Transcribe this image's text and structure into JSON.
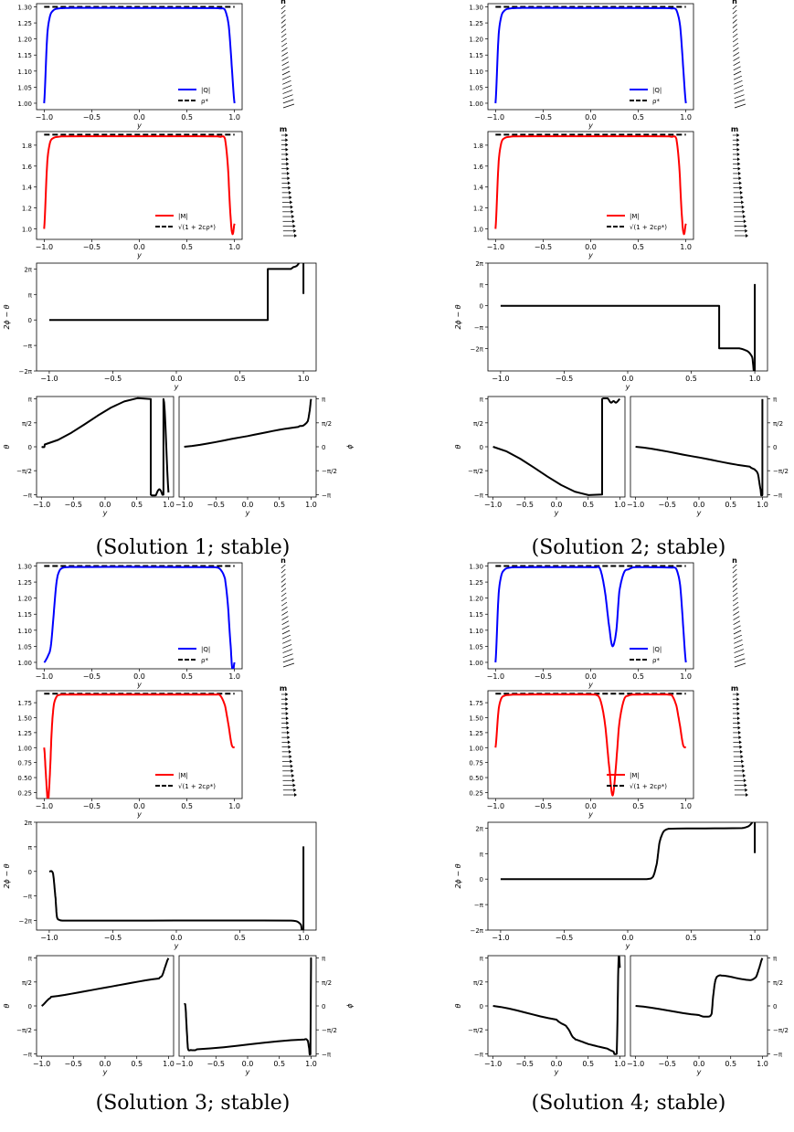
{
  "figure": {
    "captions": [
      "(Solution 1; stable)",
      "(Solution 2; stable)",
      "(Solution 3; stable)",
      "(Solution 4; stable)"
    ]
  },
  "labels": {
    "xlabel": "y",
    "ylabel_diff": "2ϕ − θ",
    "ylabel_theta": "θ",
    "ylabel_phi": "ϕ",
    "n_label": "n",
    "m_label": "m",
    "legend_Q": "|Q|",
    "legend_rho": "ρ*",
    "legend_M": "|M|",
    "legend_sqrt": "√(1 + 2cρ*)"
  },
  "colors": {
    "Q": "#0000ff",
    "M": "#ff0000",
    "ref": "#000000",
    "curve": "#000000"
  },
  "chart_data": [
    {
      "title": "(Solution 1; stable)",
      "type": "line",
      "Q": {
        "ylim": [
          0.98,
          1.31
        ],
        "yticks": [
          "1.00",
          "1.05",
          "1.10",
          "1.15",
          "1.20",
          "1.25",
          "1.30"
        ],
        "rho_star": 1.3,
        "x": [
          -1.0,
          -0.97,
          -0.94,
          -0.9,
          -0.85,
          -0.8,
          -0.7,
          0.8,
          0.85,
          0.9,
          0.94,
          0.97,
          1.0
        ],
        "y": [
          1.0,
          1.2,
          1.27,
          1.29,
          1.295,
          1.296,
          1.297,
          1.296,
          1.295,
          1.29,
          1.24,
          1.12,
          1.0
        ]
      },
      "M": {
        "ylim": [
          0.9,
          1.93
        ],
        "yticks": [
          "1.0",
          "1.2",
          "1.4",
          "1.6",
          "1.8"
        ],
        "ref": 1.9,
        "x": [
          -1.0,
          -0.97,
          -0.94,
          -0.9,
          -0.85,
          -0.8,
          0.8,
          0.85,
          0.9,
          0.93,
          0.96,
          0.98,
          1.0
        ],
        "y": [
          1.0,
          1.6,
          1.82,
          1.87,
          1.88,
          1.885,
          1.885,
          1.88,
          1.86,
          1.6,
          1.1,
          0.95,
          1.05
        ]
      },
      "diff": {
        "ylim": [
          -6.28,
          7.0
        ],
        "yticks": [
          "−2π",
          "−π",
          "0",
          "π",
          "2π"
        ],
        "x": [
          -1.0,
          0.72,
          0.72,
          0.9,
          0.92,
          0.95,
          0.98,
          1.0,
          1.0
        ],
        "y": [
          0,
          0,
          6.28,
          6.28,
          6.5,
          6.7,
          7.4,
          8.2,
          3.2
        ]
      },
      "theta": {
        "x": [
          -1.0,
          -0.95,
          0.72,
          0.72,
          0.85,
          0.88,
          0.9,
          0.92,
          0.92,
          1.0
        ],
        "y": [
          0,
          0.15,
          3.14,
          -3.14,
          -2.8,
          -2.9,
          -3.1,
          -3.14,
          3.14,
          -3.0
        ]
      },
      "phi": {
        "x": [
          -1.0,
          0.0,
          0.8,
          0.88,
          0.95,
          0.98,
          1.0
        ],
        "y": [
          0,
          0.7,
          1.3,
          1.4,
          1.7,
          2.4,
          3.14
        ]
      }
    },
    {
      "title": "(Solution 2; stable)",
      "type": "line",
      "Q": {
        "ylim": [
          0.98,
          1.31
        ],
        "yticks": [
          "1.00",
          "1.05",
          "1.10",
          "1.15",
          "1.20",
          "1.25",
          "1.30"
        ],
        "rho_star": 1.3,
        "x": [
          -1.0,
          -0.97,
          -0.94,
          -0.9,
          -0.85,
          -0.8,
          -0.7,
          0.8,
          0.85,
          0.9,
          0.94,
          0.97,
          1.0
        ],
        "y": [
          1.0,
          1.2,
          1.27,
          1.29,
          1.295,
          1.296,
          1.297,
          1.296,
          1.295,
          1.29,
          1.24,
          1.12,
          1.0
        ]
      },
      "M": {
        "ylim": [
          0.9,
          1.93
        ],
        "yticks": [
          "1.0",
          "1.2",
          "1.4",
          "1.6",
          "1.8"
        ],
        "ref": 1.9,
        "x": [
          -1.0,
          -0.97,
          -0.94,
          -0.9,
          -0.85,
          -0.8,
          0.8,
          0.85,
          0.9,
          0.93,
          0.96,
          0.98,
          1.0
        ],
        "y": [
          1.0,
          1.6,
          1.82,
          1.87,
          1.88,
          1.885,
          1.885,
          1.88,
          1.86,
          1.6,
          1.1,
          0.95,
          1.05
        ]
      },
      "diff": {
        "ylim": [
          -9.6,
          6.28
        ],
        "yticks": [
          "−2π",
          "−π",
          "0",
          "π",
          "2π"
        ],
        "x": [
          -1.0,
          0.72,
          0.72,
          0.88,
          0.92,
          0.95,
          0.98,
          1.0,
          1.0
        ],
        "y": [
          0,
          0,
          -6.28,
          -6.28,
          -6.5,
          -6.8,
          -7.6,
          -9.4,
          3.2
        ]
      },
      "theta": {
        "x": [
          -1.0,
          0.72,
          0.72,
          0.86,
          0.9,
          0.94,
          1.0
        ],
        "y": [
          0,
          -3.14,
          3.14,
          2.9,
          3.0,
          2.9,
          3.14
        ]
      },
      "phi": {
        "x": [
          -1.0,
          0.0,
          0.8,
          0.88,
          0.93,
          0.97,
          1.0,
          1.0
        ],
        "y": [
          0,
          -0.7,
          -1.3,
          -1.5,
          -1.8,
          -2.8,
          -3.14,
          3.14
        ]
      }
    },
    {
      "title": "(Solution 3; stable)",
      "type": "line",
      "Q": {
        "ylim": [
          0.98,
          1.31
        ],
        "yticks": [
          "1.00",
          "1.05",
          "1.10",
          "1.15",
          "1.20",
          "1.25",
          "1.30"
        ],
        "rho_star": 1.3,
        "x": [
          -1.0,
          -0.96,
          -0.93,
          -0.9,
          -0.87,
          -0.84,
          -0.8,
          -0.7,
          0.8,
          0.85,
          0.9,
          0.93,
          0.96,
          0.98,
          1.0
        ],
        "y": [
          1.0,
          1.02,
          1.05,
          1.15,
          1.25,
          1.285,
          1.295,
          1.297,
          1.296,
          1.29,
          1.26,
          1.18,
          1.05,
          0.97,
          1.0
        ]
      },
      "M": {
        "ylim": [
          0.15,
          1.95
        ],
        "yticks": [
          "0.25",
          "0.50",
          "0.75",
          "1.00",
          "1.25",
          "1.50",
          "1.75"
        ],
        "ref": 1.9,
        "x": [
          -1.0,
          -0.98,
          -0.96,
          -0.94,
          -0.92,
          -0.9,
          -0.87,
          -0.84,
          -0.8,
          0.8,
          0.85,
          0.9,
          0.94,
          0.97,
          1.0
        ],
        "y": [
          1.0,
          0.5,
          0.1,
          0.55,
          1.3,
          1.7,
          1.85,
          1.88,
          1.885,
          1.885,
          1.87,
          1.7,
          1.35,
          1.05,
          1.0
        ]
      },
      "diff": {
        "ylim": [
          -7.5,
          6.28
        ],
        "yticks": [
          "−2π",
          "−π",
          "0",
          "π",
          "2π"
        ],
        "x": [
          -1.0,
          -0.97,
          -0.95,
          -0.94,
          -0.92,
          -0.9,
          0.9,
          0.95,
          0.98,
          1.0,
          1.0
        ],
        "y": [
          0,
          -0.3,
          -3.5,
          -5.8,
          -6.2,
          -6.28,
          -6.28,
          -6.4,
          -6.8,
          -7.6,
          3.2
        ]
      },
      "theta": {
        "x": [
          -1.0,
          -0.9,
          -0.85,
          0.0,
          0.85,
          0.9,
          0.95,
          1.0
        ],
        "y": [
          0,
          0.4,
          0.6,
          1.2,
          1.8,
          2.0,
          2.6,
          3.14
        ]
      },
      "phi": {
        "x": [
          -1.0,
          -0.98,
          -0.96,
          -0.94,
          -0.9,
          -0.8,
          0.9,
          0.95,
          0.97,
          0.99,
          1.0,
          1.0
        ],
        "y": [
          0.1,
          0,
          -1.5,
          -2.8,
          -2.9,
          -2.85,
          -2.2,
          -2.3,
          -2.8,
          -3.14,
          3.14,
          3.0
        ]
      }
    },
    {
      "title": "(Solution 4; stable)",
      "type": "line",
      "Q": {
        "ylim": [
          0.98,
          1.31
        ],
        "yticks": [
          "1.00",
          "1.05",
          "1.10",
          "1.15",
          "1.20",
          "1.25",
          "1.30"
        ],
        "rho_star": 1.3,
        "x": [
          -1.0,
          -0.97,
          -0.94,
          -0.9,
          -0.85,
          -0.8,
          0.05,
          0.1,
          0.15,
          0.2,
          0.23,
          0.27,
          0.3,
          0.35,
          0.4,
          0.45,
          0.85,
          0.9,
          0.94,
          0.97,
          1.0
        ],
        "y": [
          1.0,
          1.2,
          1.27,
          1.29,
          1.295,
          1.296,
          1.296,
          1.29,
          1.22,
          1.1,
          1.05,
          1.1,
          1.22,
          1.28,
          1.29,
          1.296,
          1.295,
          1.29,
          1.24,
          1.12,
          1.0
        ]
      },
      "M": {
        "ylim": [
          0.15,
          1.95
        ],
        "yticks": [
          "0.25",
          "0.50",
          "0.75",
          "1.00",
          "1.25",
          "1.50",
          "1.75"
        ],
        "ref": 1.9,
        "x": [
          -1.0,
          -0.97,
          -0.94,
          -0.9,
          -0.85,
          -0.8,
          0.05,
          0.1,
          0.15,
          0.2,
          0.23,
          0.26,
          0.3,
          0.35,
          0.4,
          0.45,
          0.85,
          0.9,
          0.94,
          0.97,
          1.0
        ],
        "y": [
          1.0,
          1.6,
          1.82,
          1.87,
          1.88,
          1.885,
          1.885,
          1.8,
          1.4,
          0.6,
          0.2,
          0.6,
          1.4,
          1.8,
          1.87,
          1.885,
          1.88,
          1.7,
          1.35,
          1.05,
          1.0
        ]
      },
      "diff": {
        "ylim": [
          -6.28,
          7.0
        ],
        "yticks": [
          "−2π",
          "−π",
          "0",
          "π",
          "2π"
        ],
        "x": [
          -1.0,
          0.15,
          0.2,
          0.23,
          0.25,
          0.28,
          0.32,
          0.9,
          0.95,
          0.98,
          1.0,
          1.0
        ],
        "y": [
          0,
          0,
          0.3,
          2.0,
          4.5,
          5.8,
          6.2,
          6.28,
          6.5,
          7.0,
          8.0,
          3.2
        ]
      },
      "theta": {
        "x": [
          -1.0,
          0.0,
          0.15,
          0.2,
          0.25,
          0.3,
          0.5,
          0.8,
          0.9,
          0.95,
          0.98,
          1.0
        ],
        "y": [
          0,
          -0.9,
          -1.3,
          -1.6,
          -2.0,
          -2.2,
          -2.5,
          -2.8,
          -3.0,
          -3.14,
          3.14,
          2.5
        ]
      },
      "phi": {
        "x": [
          -1.0,
          0.0,
          0.15,
          0.2,
          0.22,
          0.25,
          0.28,
          0.35,
          0.8,
          0.9,
          0.95,
          1.0
        ],
        "y": [
          0,
          -0.6,
          -0.7,
          -0.5,
          0.5,
          1.5,
          1.9,
          2.0,
          1.7,
          1.9,
          2.5,
          3.14
        ]
      }
    }
  ]
}
